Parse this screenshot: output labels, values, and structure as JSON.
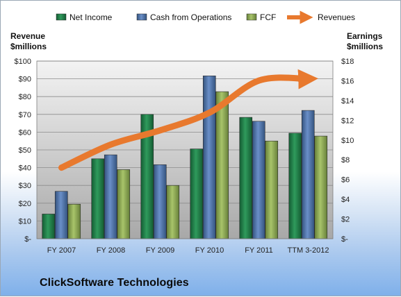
{
  "chart_data": {
    "type": "bar",
    "categories": [
      "FY 2007",
      "FY 2008",
      "FY 2009",
      "FY 2010",
      "FY 2011",
      "TTM 3-2012"
    ],
    "series": [
      {
        "name": "Net Income",
        "type": "bar",
        "axis": "right",
        "color": "#1e7a46",
        "values": [
          2.5,
          8.1,
          12.6,
          9.1,
          12.3,
          10.7
        ]
      },
      {
        "name": "Cash from Operations",
        "type": "bar",
        "axis": "right",
        "color": "#4a6fa8",
        "values": [
          4.8,
          8.5,
          7.5,
          16.5,
          11.9,
          13.0
        ]
      },
      {
        "name": "FCF",
        "type": "bar",
        "axis": "right",
        "color": "#8aa850",
        "values": [
          3.5,
          7.0,
          5.4,
          14.9,
          9.9,
          10.4
        ]
      },
      {
        "name": "Revenues",
        "type": "line",
        "axis": "left",
        "color": "#e8792e",
        "values": [
          40,
          53,
          61,
          71,
          89,
          90
        ]
      }
    ],
    "y_left": {
      "title_line1": "Revenue",
      "title_line2": "$millions",
      "ylim": [
        0,
        100
      ],
      "ticks": [
        0,
        10,
        20,
        30,
        40,
        50,
        60,
        70,
        80,
        90,
        100
      ],
      "tick_labels": [
        "$-",
        "$10",
        "$20",
        "$30",
        "$40",
        "$50",
        "$60",
        "$70",
        "$80",
        "$90",
        "$100"
      ]
    },
    "y_right": {
      "title_line1": "Earnings",
      "title_line2": "$millions",
      "ylim": [
        0,
        18
      ],
      "ticks": [
        0,
        2,
        4,
        6,
        8,
        10,
        12,
        14,
        16,
        18
      ],
      "tick_labels": [
        "$-",
        "$2",
        "$4",
        "$6",
        "$8",
        "$10",
        "$12",
        "$14",
        "$16",
        "$18"
      ]
    },
    "legend_position": "top",
    "grid": true
  },
  "company_name": "ClickSoftware Technologies"
}
